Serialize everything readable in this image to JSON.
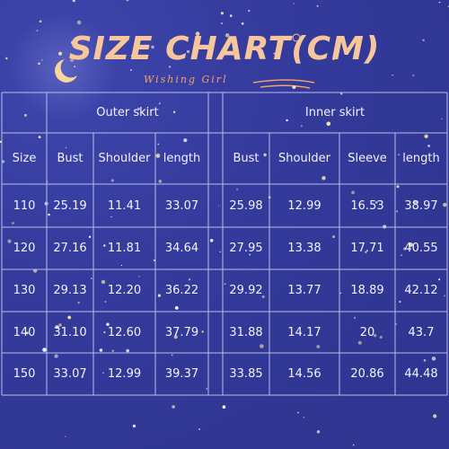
{
  "header": {
    "title": "SIZE CHART(CM)",
    "subtitle": "Wishing Girl"
  },
  "table": {
    "groups": [
      "Outer skirt",
      "Inner skirt"
    ],
    "columns": [
      "Size",
      "Bust",
      "Shoulder",
      "length",
      "Bust",
      "Shoulder",
      "Sleeve",
      "length"
    ],
    "rows": [
      [
        "110",
        "25.19",
        "11.41",
        "33.07",
        "25.98",
        "12.99",
        "16.53",
        "38.97"
      ],
      [
        "120",
        "27.16",
        "11.81",
        "34.64",
        "27.95",
        "13.38",
        "17.71",
        "40.55"
      ],
      [
        "130",
        "29.13",
        "12.20",
        "36.22",
        "29.92",
        "13.77",
        "18.89",
        "42.12"
      ],
      [
        "140",
        "31.10",
        "12.60",
        "37.79",
        "31.88",
        "14.17",
        "20",
        "43.7"
      ],
      [
        "150",
        "33.07",
        "12.99",
        "39.37",
        "33.85",
        "14.56",
        "20.86",
        "44.48"
      ]
    ]
  }
}
